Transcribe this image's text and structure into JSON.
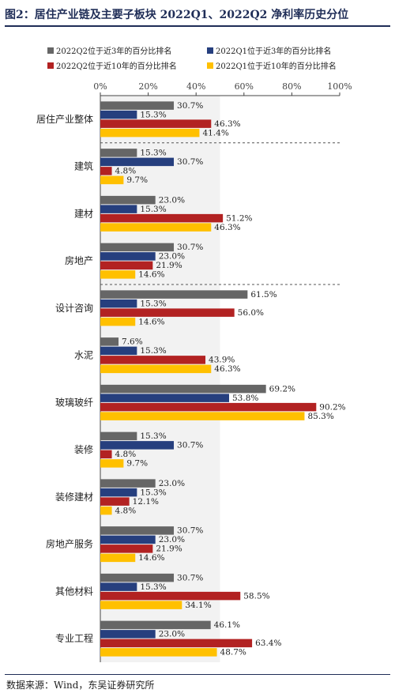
{
  "title": "图2：居住产业链及主要子板块 2022Q1、2022Q2 净利率历史分位",
  "source": "数据来源：Wind，东吴证券研究所",
  "chart_data": {
    "type": "bar",
    "orientation": "horizontal",
    "categories": [
      "居住产业整体",
      "建筑",
      "建材",
      "房地产",
      "设计咨询",
      "水泥",
      "玻璃玻纤",
      "装修",
      "装修建材",
      "房地产服务",
      "其他材料",
      "专业工程"
    ],
    "series": [
      {
        "name": "2022Q2位于近3年的百分比排名",
        "color": "#666666",
        "values": [
          30.7,
          15.3,
          23.0,
          30.7,
          61.5,
          7.6,
          69.2,
          15.3,
          23.0,
          30.7,
          30.7,
          46.1
        ],
        "labels": [
          "30.7%",
          "15.3%",
          "23.0%",
          "30.7%",
          "61.5%",
          "7.6%",
          "69.2%",
          "15.3%",
          "23.0%",
          "30.7%",
          "30.7%",
          "46.1%"
        ]
      },
      {
        "name": "2022Q1位于近3年的百分比排名",
        "color": "#263f7e",
        "values": [
          15.3,
          30.7,
          15.3,
          23.0,
          15.3,
          15.3,
          53.8,
          30.7,
          15.3,
          23.0,
          15.3,
          23.0
        ],
        "labels": [
          "15.3%",
          "30.7%",
          "15.3%",
          "23.0%",
          "15.3%",
          "15.3%",
          "53.8%",
          "30.7%",
          "15.3%",
          "23.0%",
          "15.3%",
          "23.0%"
        ]
      },
      {
        "name": "2022Q2位于近10年的百分比排名",
        "color": "#b22222",
        "values": [
          46.3,
          4.8,
          51.2,
          21.9,
          56.0,
          43.9,
          90.2,
          4.8,
          12.1,
          21.9,
          58.5,
          63.4
        ],
        "labels": [
          "46.3%",
          "4.8%",
          "51.2%",
          "21.9%",
          "56.0%",
          "43.9%",
          "90.2%",
          "4.8%",
          "12.1%",
          "21.9%",
          "58.5%",
          "63.4%"
        ]
      },
      {
        "name": "2022Q1位于近10年的百分比排名",
        "color": "#ffc000",
        "values": [
          41.4,
          9.7,
          46.3,
          14.6,
          14.6,
          46.3,
          85.3,
          9.7,
          4.8,
          14.6,
          34.1,
          48.7
        ],
        "labels": [
          "41.4%",
          "9.7%",
          "46.3%",
          "14.6%",
          "14.6%",
          "46.3%",
          "85.3%",
          "9.7%",
          "4.8%",
          "14.6%",
          "34.1%",
          "48.7%"
        ]
      }
    ],
    "xlim": [
      0,
      100
    ],
    "xticks": [
      "0%",
      "20%",
      "40%",
      "60%",
      "80%",
      "100%"
    ],
    "shaded_band": [
      0,
      50
    ],
    "dashed_separators_after": [
      0,
      3
    ],
    "legend": "top",
    "grid": false
  }
}
